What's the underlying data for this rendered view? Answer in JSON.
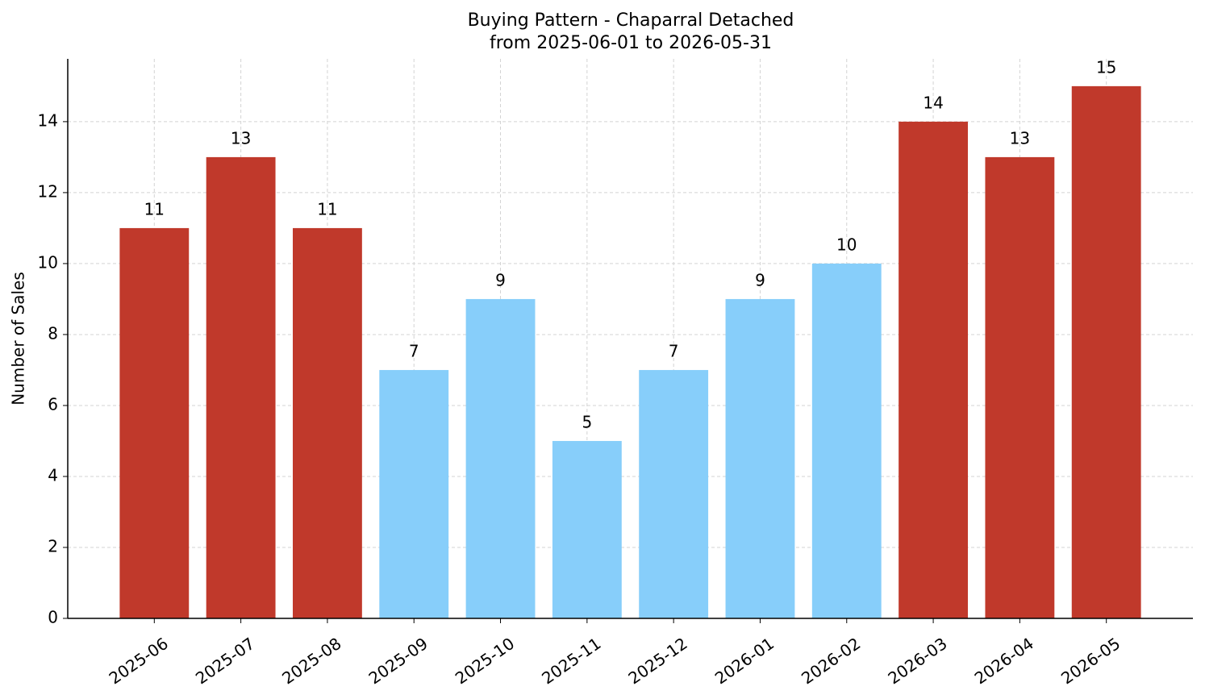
{
  "chart_data": {
    "type": "bar",
    "title": "Buying Pattern - Chaparral Detached",
    "subtitle": "from 2025-06-01 to 2026-05-31",
    "y_label": "Number of Sales",
    "categories": [
      "2025-06",
      "2025-07",
      "2025-08",
      "2025-09",
      "2025-10",
      "2025-11",
      "2025-12",
      "2026-01",
      "2026-02",
      "2026-03",
      "2026-04",
      "2026-05"
    ],
    "values": [
      11,
      13,
      11,
      7,
      9,
      5,
      7,
      9,
      10,
      14,
      13,
      15
    ],
    "colors": [
      "#c0392b",
      "#c0392b",
      "#c0392b",
      "#87cefa",
      "#87cefa",
      "#87cefa",
      "#87cefa",
      "#87cefa",
      "#87cefa",
      "#c0392b",
      "#c0392b",
      "#c0392b"
    ],
    "ylim": [
      0,
      15.77
    ],
    "yticks": [
      0,
      2,
      4,
      6,
      8,
      10,
      12,
      14
    ],
    "grid": true
  }
}
